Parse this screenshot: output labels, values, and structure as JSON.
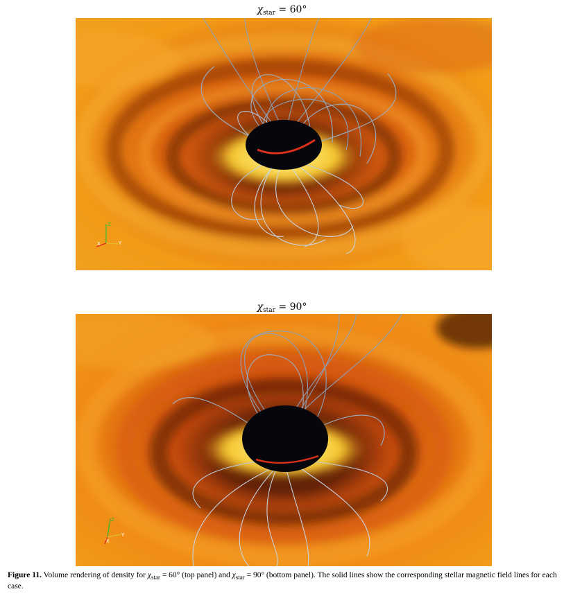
{
  "figure": {
    "panels": [
      {
        "id": "top",
        "title_symbol": "χ",
        "title_subscript": "star",
        "title_value": "= 60°"
      },
      {
        "id": "bottom",
        "title_symbol": "χ",
        "title_subscript": "star",
        "title_value": "= 90°"
      }
    ],
    "axis_triad": {
      "z": "Z",
      "x": "X",
      "y": "Y",
      "colors": {
        "z": "#2fb82f",
        "x": "#d8241f",
        "y": "#e0c030"
      }
    },
    "caption": {
      "label": "Figure 11.",
      "text_1": " Volume rendering of density for ",
      "sym_1": "χ",
      "sub_1": "star",
      "val_1": " = 60° (top panel) and ",
      "sym_2": "χ",
      "sub_2": "star",
      "val_2": " = 90° (bottom panel). The solid lines show the corresponding stellar magnetic field lines for each case."
    },
    "colors": {
      "disk_outer": "#f59a12",
      "disk_mid": "#ee7a10",
      "disk_dark": "#6e2a08",
      "hot_spot": "#f8e050",
      "star": "#05070d",
      "field_line": "#8aa0b8",
      "field_line_light": "#c8d4e2"
    }
  }
}
